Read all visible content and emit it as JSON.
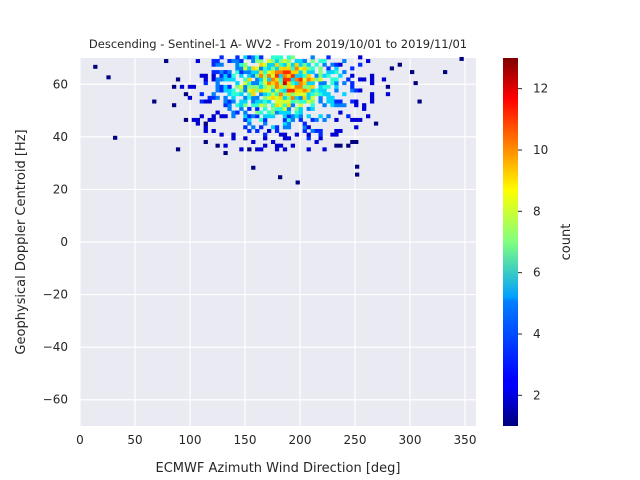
{
  "chart_data": {
    "type": "heatmap",
    "title": "Descending - Sentinel-1 A- WV2 - From 2019/10/01 to 2019/11/01",
    "xlabel": "ECMWF Azimuth Wind Direction [deg]",
    "ylabel": "Geophysical Doppler Centroid [Hz]",
    "xlim": [
      0,
      360
    ],
    "ylim": [
      -70,
      70
    ],
    "xticks": [
      0,
      50,
      100,
      150,
      200,
      250,
      300,
      350
    ],
    "yticks": [
      -60,
      -40,
      -20,
      0,
      20,
      40,
      60
    ],
    "grid": true,
    "colorbar": {
      "label": "count",
      "colormap": "jet",
      "range": [
        1,
        13
      ],
      "ticks": [
        2,
        4,
        6,
        8,
        10,
        12
      ]
    },
    "bin_size": [
      3.6,
      1.4
    ],
    "density_center": {
      "x": 182,
      "y": 61,
      "peak_count": 12
    },
    "density_spread": {
      "x": 45,
      "y_top": 10,
      "y_bottom": 14
    },
    "occupied_y_range": [
      22,
      70
    ],
    "outliers": [
      {
        "x": 30,
        "y": 39
      },
      {
        "x": 12,
        "y": 66
      },
      {
        "x": 24,
        "y": 62
      },
      {
        "x": 196,
        "y": 22
      },
      {
        "x": 180,
        "y": 24
      },
      {
        "x": 250,
        "y": 25
      },
      {
        "x": 250,
        "y": 28
      },
      {
        "x": 345,
        "y": 69
      },
      {
        "x": 330,
        "y": 64
      },
      {
        "x": 300,
        "y": 64
      }
    ]
  }
}
